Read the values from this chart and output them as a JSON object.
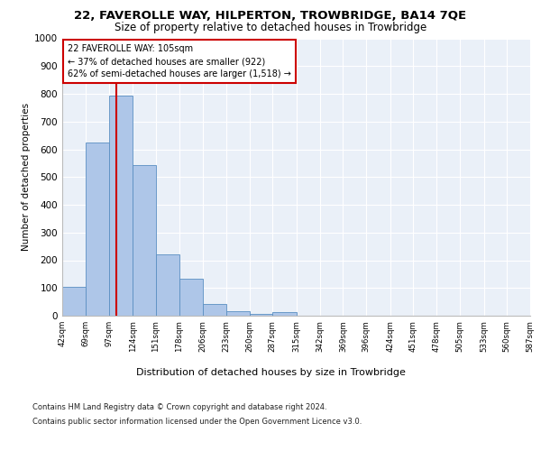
{
  "title1": "22, FAVEROLLE WAY, HILPERTON, TROWBRIDGE, BA14 7QE",
  "title2": "Size of property relative to detached houses in Trowbridge",
  "xlabel": "Distribution of detached houses by size in Trowbridge",
  "ylabel": "Number of detached properties",
  "footer1": "Contains HM Land Registry data © Crown copyright and database right 2024.",
  "footer2": "Contains public sector information licensed under the Open Government Licence v3.0.",
  "annotation_line1": "22 FAVEROLLE WAY: 105sqm",
  "annotation_line2": "← 37% of detached houses are smaller (922)",
  "annotation_line3": "62% of semi-detached houses are larger (1,518) →",
  "bar_values": [
    103,
    625,
    795,
    543,
    220,
    132,
    42,
    16,
    8,
    12,
    0,
    0,
    0,
    0,
    0,
    0,
    0,
    0,
    0,
    0
  ],
  "bin_edges": [
    42,
    69,
    97,
    124,
    151,
    178,
    206,
    233,
    260,
    287,
    315,
    342,
    369,
    396,
    424,
    451,
    478,
    505,
    533,
    560,
    587
  ],
  "property_size": 105,
  "bar_color": "#aec6e8",
  "bar_edge_color": "#5a8fc2",
  "vline_color": "#cc0000",
  "ylim": [
    0,
    1000
  ],
  "yticks": [
    0,
    100,
    200,
    300,
    400,
    500,
    600,
    700,
    800,
    900,
    1000
  ],
  "background_color": "#eaf0f8",
  "grid_color": "#ffffff",
  "title_fontsize": 9.5,
  "subtitle_fontsize": 8.5,
  "title_fontweight": "normal"
}
